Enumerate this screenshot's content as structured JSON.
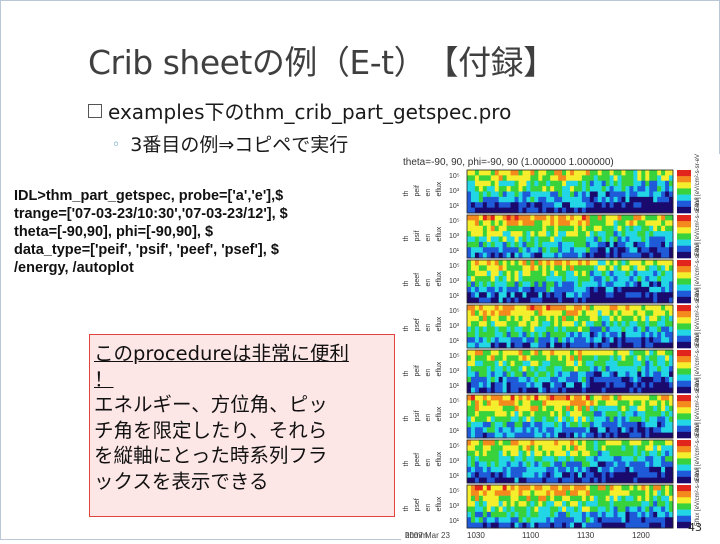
{
  "slide": {
    "title": "Crib sheetの例（E-t）　【付録】",
    "bullet": "examples下のthm_crib_part_getspec.pro",
    "sub_bullet": "3番目の例⇒コピペで実行",
    "code_lines": [
      "IDL>thm_part_getspec, probe=['a','e'],$",
      "trange=['07-03-23/10:30','07-03-23/12'], $",
      "theta=[-90,90], phi=[-90,90], $",
      "data_type=['peif', 'psif', 'peef', 'psef'], $",
      "/energy, /autoplot"
    ],
    "callout_lines": [
      "このprocedureは非常に便利",
      "！",
      "エネルギー、方位角、ピッ",
      "チ角を限定したり、それら",
      "を縦軸にとった時系列フラ",
      "ックスを表示できる"
    ],
    "page_number": "43"
  },
  "plot": {
    "header": "theta=-90, 90, phi=-90, 90 (1.000000 1.000000)",
    "panel_labels": [
      [
        "th",
        "peif",
        "en",
        "eflux"
      ],
      [
        "th",
        "psif",
        "en",
        "eflux"
      ],
      [
        "th",
        "peef",
        "en",
        "eflux"
      ],
      [
        "th",
        "psef",
        "en",
        "eflux"
      ],
      [
        "th",
        "peif",
        "en",
        "eflux"
      ],
      [
        "th",
        "psif",
        "en",
        "eflux"
      ],
      [
        "th",
        "peef",
        "en",
        "eflux"
      ],
      [
        "th",
        "psef",
        "en",
        "eflux"
      ]
    ],
    "y_ticks": [
      "10⁵",
      "10³",
      "10¹"
    ],
    "x_ticks": [
      "hhmm",
      "1030",
      "1100",
      "1130",
      "1200"
    ],
    "date_label": "2007 Mar 23",
    "colorbar_label": "Eflux [eV/cm²-s-sr-eV]",
    "colors": {
      "dark": "#1a0a6e",
      "blue": "#1f5bd8",
      "cyan": "#22d6e6",
      "green": "#38d23c",
      "yellow": "#f4ee2c",
      "orange": "#f48a1e",
      "red": "#e1241c"
    }
  }
}
